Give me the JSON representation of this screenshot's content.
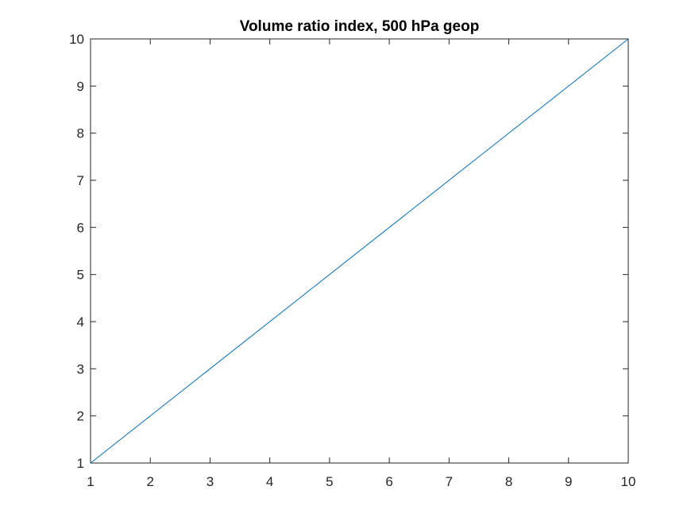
{
  "chart_data": {
    "type": "line",
    "title": "Volume ratio index, 500 hPa geop",
    "xlabel": "",
    "ylabel": "",
    "xlim": [
      1,
      10
    ],
    "ylim": [
      1,
      10
    ],
    "xticks": [
      1,
      2,
      3,
      4,
      5,
      6,
      7,
      8,
      9,
      10
    ],
    "yticks": [
      1,
      2,
      3,
      4,
      5,
      6,
      7,
      8,
      9,
      10
    ],
    "grid": false,
    "box": true,
    "series": [
      {
        "color": "#0072bd",
        "x": [
          1,
          10
        ],
        "y": [
          1,
          10
        ]
      }
    ]
  },
  "colors": {
    "axis": "#262626",
    "background": "#ffffff",
    "series_line": "#0072bd"
  }
}
